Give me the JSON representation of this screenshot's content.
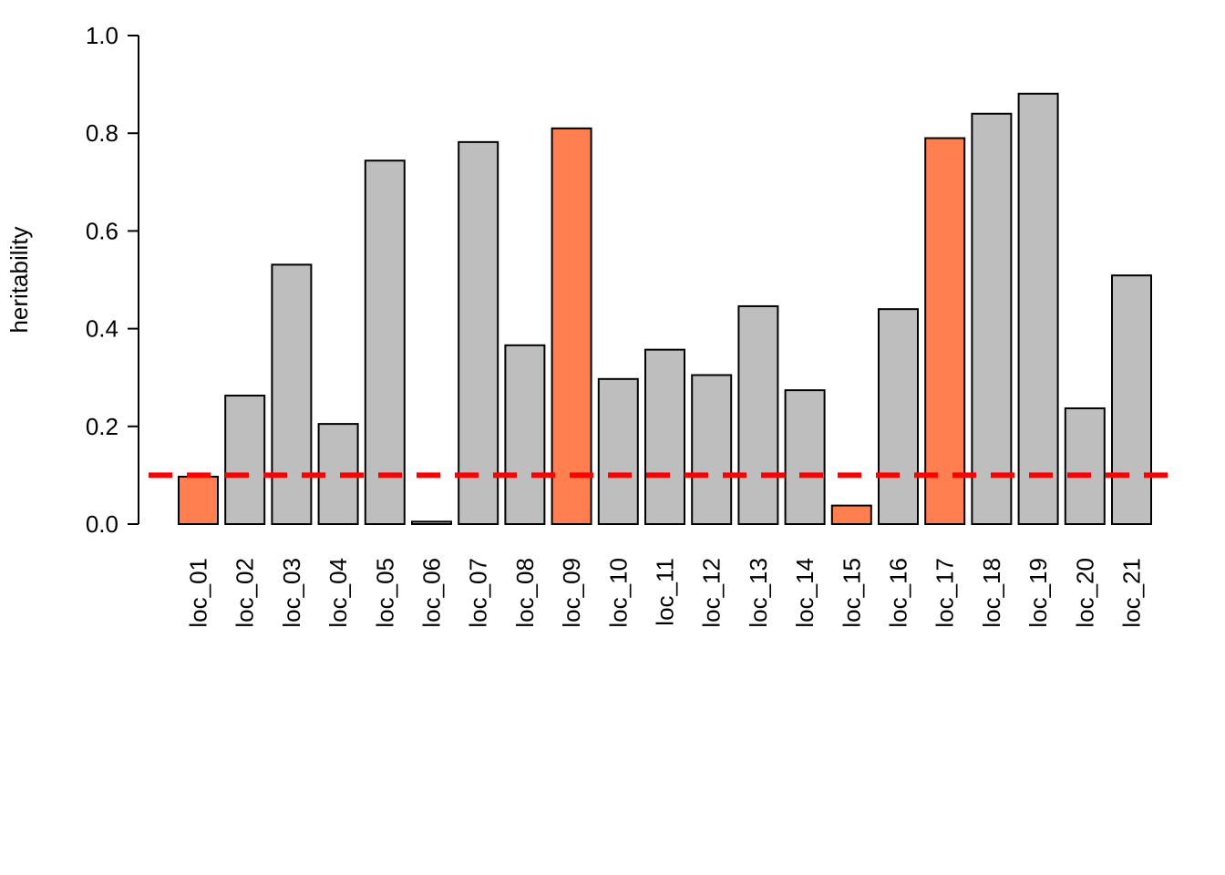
{
  "chart_data": {
    "type": "bar",
    "categories": [
      "loc_01",
      "loc_02",
      "loc_03",
      "loc_04",
      "loc_05",
      "loc_06",
      "loc_07",
      "loc_08",
      "loc_09",
      "loc_10",
      "loc_11",
      "loc_12",
      "loc_13",
      "loc_14",
      "loc_15",
      "loc_16",
      "loc_17",
      "loc_18",
      "loc_19",
      "loc_20",
      "loc_21"
    ],
    "values": [
      0.097,
      0.263,
      0.531,
      0.205,
      0.744,
      0.005,
      0.782,
      0.366,
      0.81,
      0.297,
      0.357,
      0.305,
      0.446,
      0.274,
      0.038,
      0.44,
      0.79,
      0.84,
      0.881,
      0.237,
      0.509
    ],
    "highlight": [
      true,
      false,
      false,
      false,
      false,
      false,
      false,
      false,
      true,
      false,
      false,
      false,
      false,
      false,
      true,
      false,
      true,
      false,
      false,
      false,
      false
    ],
    "title": "",
    "xlabel": "",
    "ylabel": "heritability",
    "ylim": [
      0,
      1.0
    ],
    "yticks": [
      "0.0",
      "0.2",
      "0.4",
      "0.6",
      "0.8",
      "1.0"
    ],
    "threshold": 0.1,
    "colors": {
      "default_bar": "#bebebe",
      "highlight_bar": "#ff7f50",
      "threshold_line": "#ff0000",
      "bar_border": "#000000"
    },
    "grid": false,
    "legend": "none"
  }
}
